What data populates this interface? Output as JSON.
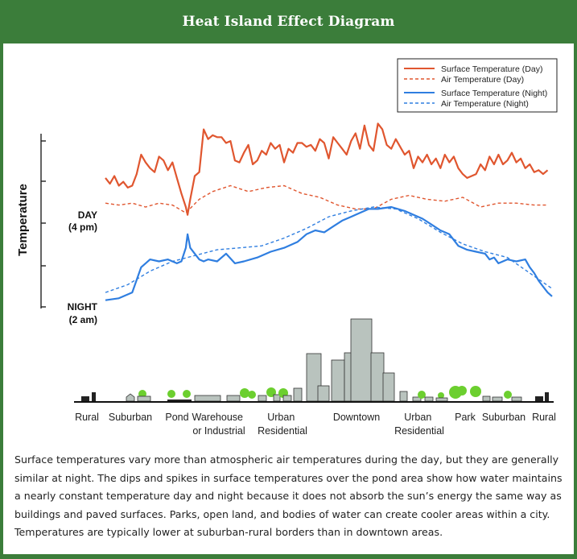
{
  "header": {
    "title": "Heat Island Effect Diagram"
  },
  "colors": {
    "header_bg": "#3b7d3a",
    "day": "#e0562f",
    "night": "#2f7ee0",
    "building": "#b9c3be",
    "tree": "#6ccf2f"
  },
  "chart_data": {
    "type": "line",
    "title": "Heat Island Effect Diagram",
    "ylabel": "Temperature",
    "y_ticks": [
      {
        "label": "DAY",
        "sub": "(4 pm)"
      },
      {
        "label": "NIGHT",
        "sub": "(2 am)"
      }
    ],
    "xlim": [
      0,
      100
    ],
    "ylim": [
      0,
      100
    ],
    "grid": false,
    "legend_position": "top-right",
    "x_zones": [
      "Rural",
      "Suburban",
      "Pond",
      "Warehouse or Industrial",
      "Urban Residential",
      "Downtown",
      "Urban Residential",
      "Park",
      "Suburban",
      "Rural"
    ],
    "series": [
      {
        "name": "Surface Temperature (Day)",
        "style": "solid",
        "color_key": "day",
        "points": [
          [
            0,
            71
          ],
          [
            1,
            68
          ],
          [
            2,
            72
          ],
          [
            3,
            67
          ],
          [
            4,
            69
          ],
          [
            5,
            66
          ],
          [
            6,
            67
          ],
          [
            7,
            73
          ],
          [
            8,
            83
          ],
          [
            9,
            79
          ],
          [
            10,
            76
          ],
          [
            11,
            74
          ],
          [
            12,
            82
          ],
          [
            13,
            80
          ],
          [
            14,
            75
          ],
          [
            15,
            79
          ],
          [
            16,
            71
          ],
          [
            17,
            63
          ],
          [
            18,
            56
          ],
          [
            18.4,
            52
          ],
          [
            19,
            60
          ],
          [
            20,
            72
          ],
          [
            21,
            74
          ],
          [
            22,
            96
          ],
          [
            23,
            91
          ],
          [
            24,
            93
          ],
          [
            25,
            92
          ],
          [
            26,
            92
          ],
          [
            27,
            89
          ],
          [
            28,
            90
          ],
          [
            29,
            80
          ],
          [
            30,
            79
          ],
          [
            31,
            84
          ],
          [
            32,
            88
          ],
          [
            33,
            78
          ],
          [
            34,
            80
          ],
          [
            35,
            85
          ],
          [
            36,
            83
          ],
          [
            37,
            89
          ],
          [
            38,
            86
          ],
          [
            39,
            88
          ],
          [
            40,
            79
          ],
          [
            41,
            86
          ],
          [
            42,
            84
          ],
          [
            43,
            89
          ],
          [
            44,
            89
          ],
          [
            45,
            87
          ],
          [
            46,
            88
          ],
          [
            47,
            85
          ],
          [
            48,
            91
          ],
          [
            49,
            89
          ],
          [
            50,
            81
          ],
          [
            51,
            92
          ],
          [
            52,
            89
          ],
          [
            53,
            86
          ],
          [
            54,
            83
          ],
          [
            55,
            90
          ],
          [
            56,
            94
          ],
          [
            57,
            86
          ],
          [
            58,
            98
          ],
          [
            59,
            88
          ],
          [
            60,
            85
          ],
          [
            61,
            99
          ],
          [
            62,
            96
          ],
          [
            63,
            88
          ],
          [
            64,
            86
          ],
          [
            65,
            91
          ],
          [
            66,
            87
          ],
          [
            67,
            83
          ],
          [
            68,
            85
          ],
          [
            69,
            76
          ],
          [
            70,
            82
          ],
          [
            71,
            79
          ],
          [
            72,
            83
          ],
          [
            73,
            78
          ],
          [
            74,
            81
          ],
          [
            75,
            76
          ],
          [
            76,
            83
          ],
          [
            77,
            79
          ],
          [
            78,
            82
          ],
          [
            79,
            76
          ],
          [
            80,
            73
          ],
          [
            81,
            71
          ],
          [
            82,
            72
          ],
          [
            83,
            73
          ],
          [
            84,
            78
          ],
          [
            85,
            75
          ],
          [
            86,
            82
          ],
          [
            87,
            78
          ],
          [
            88,
            83
          ],
          [
            89,
            78
          ],
          [
            90,
            80
          ],
          [
            91,
            84
          ],
          [
            92,
            79
          ],
          [
            93,
            81
          ],
          [
            94,
            76
          ],
          [
            95,
            78
          ],
          [
            96,
            74
          ],
          [
            97,
            75
          ],
          [
            98,
            73
          ],
          [
            99,
            75
          ]
        ]
      },
      {
        "name": "Air Temperature (Day)",
        "style": "dashed",
        "color_key": "day",
        "points": [
          [
            0,
            58
          ],
          [
            3,
            57
          ],
          [
            6,
            58
          ],
          [
            9,
            56
          ],
          [
            12,
            58
          ],
          [
            15,
            57
          ],
          [
            18,
            53
          ],
          [
            21,
            60
          ],
          [
            24,
            64
          ],
          [
            28,
            67
          ],
          [
            32,
            64
          ],
          [
            36,
            66
          ],
          [
            40,
            67
          ],
          [
            44,
            63
          ],
          [
            48,
            61
          ],
          [
            52,
            57
          ],
          [
            56,
            55
          ],
          [
            60,
            55
          ],
          [
            64,
            60
          ],
          [
            68,
            62
          ],
          [
            72,
            60
          ],
          [
            76,
            59
          ],
          [
            80,
            61
          ],
          [
            84,
            56
          ],
          [
            88,
            58
          ],
          [
            92,
            58
          ],
          [
            96,
            57
          ],
          [
            99,
            57
          ]
        ]
      },
      {
        "name": "Surface Temperature (Night)",
        "style": "solid",
        "color_key": "night",
        "points": [
          [
            0,
            8
          ],
          [
            3,
            9
          ],
          [
            6,
            12
          ],
          [
            8,
            25
          ],
          [
            10,
            29
          ],
          [
            12,
            28
          ],
          [
            14,
            29
          ],
          [
            16,
            27
          ],
          [
            17,
            28
          ],
          [
            18,
            35
          ],
          [
            18.4,
            42
          ],
          [
            19,
            35
          ],
          [
            20,
            32
          ],
          [
            21,
            29
          ],
          [
            22,
            28
          ],
          [
            23,
            29
          ],
          [
            25,
            28
          ],
          [
            27,
            32
          ],
          [
            29,
            27
          ],
          [
            31,
            28
          ],
          [
            34,
            30
          ],
          [
            37,
            33
          ],
          [
            40,
            35
          ],
          [
            43,
            38
          ],
          [
            45,
            42
          ],
          [
            47,
            44
          ],
          [
            49,
            43
          ],
          [
            51,
            46
          ],
          [
            53,
            49
          ],
          [
            55,
            51
          ],
          [
            57,
            53
          ],
          [
            59,
            55
          ],
          [
            61,
            55
          ],
          [
            64,
            56
          ],
          [
            67,
            54
          ],
          [
            69,
            52
          ],
          [
            71,
            50
          ],
          [
            73,
            47
          ],
          [
            75,
            44
          ],
          [
            77,
            42
          ],
          [
            79,
            36
          ],
          [
            81,
            34
          ],
          [
            83,
            33
          ],
          [
            85,
            32
          ],
          [
            86,
            29
          ],
          [
            87,
            30
          ],
          [
            88,
            27
          ],
          [
            90,
            29
          ],
          [
            92,
            28
          ],
          [
            94,
            29
          ],
          [
            95,
            25
          ],
          [
            96,
            22
          ],
          [
            97,
            18
          ],
          [
            98,
            15
          ],
          [
            99,
            12
          ],
          [
            100,
            10
          ]
        ]
      },
      {
        "name": "Air Temperature (Night)",
        "style": "dashed",
        "color_key": "night",
        "points": [
          [
            0,
            12
          ],
          [
            5,
            16
          ],
          [
            10,
            23
          ],
          [
            15,
            28
          ],
          [
            20,
            31
          ],
          [
            25,
            34
          ],
          [
            30,
            35
          ],
          [
            35,
            36
          ],
          [
            40,
            40
          ],
          [
            45,
            45
          ],
          [
            50,
            51
          ],
          [
            55,
            54
          ],
          [
            60,
            56
          ],
          [
            65,
            55
          ],
          [
            70,
            50
          ],
          [
            75,
            43
          ],
          [
            80,
            37
          ],
          [
            85,
            33
          ],
          [
            90,
            30
          ],
          [
            95,
            22
          ],
          [
            100,
            14
          ]
        ]
      }
    ]
  }
}
